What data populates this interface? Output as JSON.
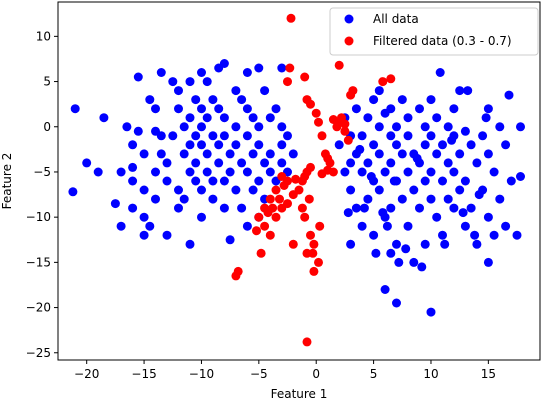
{
  "chart_data": {
    "type": "scatter",
    "xlabel": "Feature 1",
    "ylabel": "Feature 2",
    "xlim": [
      -22.5,
      19.5
    ],
    "ylim": [
      -25.8,
      13.8
    ],
    "xticks": [
      -20,
      -15,
      -10,
      -5,
      0,
      5,
      10,
      15
    ],
    "yticks": [
      -25,
      -20,
      -15,
      -10,
      -5,
      0,
      5,
      10
    ],
    "grid": false,
    "legend_position": "top-right",
    "series": [
      {
        "name": "All data",
        "color": "#0000ff",
        "points": [
          [
            -21,
            2
          ],
          [
            -21.2,
            -7.2
          ],
          [
            -20,
            -4
          ],
          [
            -19,
            -5
          ],
          [
            -18.5,
            1
          ],
          [
            -17.5,
            -8.5
          ],
          [
            -17,
            -5
          ],
          [
            -17,
            -11
          ],
          [
            -16.5,
            0
          ],
          [
            -16,
            -2
          ],
          [
            -16,
            -4.5
          ],
          [
            -16,
            -6
          ],
          [
            -16,
            -9
          ],
          [
            -15.5,
            5.5
          ],
          [
            -15.5,
            -0.5
          ],
          [
            -15,
            -3
          ],
          [
            -15,
            -7
          ],
          [
            -15,
            -10
          ],
          [
            -15,
            -12
          ],
          [
            -14.5,
            -11
          ],
          [
            -14.5,
            3
          ],
          [
            -14,
            2
          ],
          [
            -14,
            -0.5
          ],
          [
            -14,
            -5
          ],
          [
            -14,
            -8
          ],
          [
            -13.5,
            6
          ],
          [
            -13.5,
            -1
          ],
          [
            -13.5,
            -3
          ],
          [
            -13,
            -4
          ],
          [
            -13,
            -6
          ],
          [
            -13,
            -12
          ],
          [
            -12.5,
            5
          ],
          [
            -12.5,
            -1
          ],
          [
            -12,
            2
          ],
          [
            -12,
            4
          ],
          [
            -12,
            -7
          ],
          [
            -12,
            -9
          ],
          [
            -11.5,
            0
          ],
          [
            -11.5,
            -3
          ],
          [
            -11.5,
            -8
          ],
          [
            -11,
            1
          ],
          [
            -11,
            5
          ],
          [
            -11,
            -2
          ],
          [
            -11,
            -5
          ],
          [
            -11,
            -13
          ],
          [
            -10.5,
            3
          ],
          [
            -10.5,
            -1
          ],
          [
            -10.5,
            -4
          ],
          [
            -10.5,
            -6
          ],
          [
            -10,
            6
          ],
          [
            -10,
            2
          ],
          [
            -10,
            0
          ],
          [
            -10,
            -2
          ],
          [
            -10,
            -7
          ],
          [
            -10,
            -10
          ],
          [
            -9.5,
            5
          ],
          [
            -9.5,
            1
          ],
          [
            -9.5,
            -3
          ],
          [
            -9.5,
            -5
          ],
          [
            -9,
            3
          ],
          [
            -9,
            -1
          ],
          [
            -9,
            -6
          ],
          [
            -9,
            -8
          ],
          [
            -8.5,
            6.5
          ],
          [
            -8.5,
            2
          ],
          [
            -8.5,
            -2
          ],
          [
            -8.5,
            -4
          ],
          [
            -8,
            7
          ],
          [
            -8,
            1
          ],
          [
            -8,
            -1
          ],
          [
            -8,
            -6
          ],
          [
            -8,
            -9
          ],
          [
            -7.5,
            -3
          ],
          [
            -7.5,
            -5
          ],
          [
            -7.5,
            -12.5
          ],
          [
            -7,
            4
          ],
          [
            -7,
            0
          ],
          [
            -7,
            -2
          ],
          [
            -7,
            -7
          ],
          [
            -6.5,
            3
          ],
          [
            -6.5,
            -4
          ],
          [
            -6.5,
            -9
          ],
          [
            -6,
            6
          ],
          [
            -6,
            2
          ],
          [
            -6,
            -1
          ],
          [
            -6,
            -5
          ],
          [
            -6,
            -11
          ],
          [
            -5.5,
            1
          ],
          [
            -5.5,
            -3
          ],
          [
            -5.5,
            -7
          ],
          [
            -5,
            6.5
          ],
          [
            -5,
            0
          ],
          [
            -5,
            -2
          ],
          [
            -5,
            -6
          ],
          [
            -5,
            -10
          ],
          [
            -4.5,
            4
          ],
          [
            -4.5,
            -4
          ],
          [
            -4.5,
            -8
          ],
          [
            -4,
            1
          ],
          [
            -4,
            -3
          ],
          [
            -4,
            -5
          ],
          [
            -3.5,
            2
          ],
          [
            -3.5,
            -6
          ],
          [
            -3,
            6.5
          ],
          [
            -3,
            0
          ],
          [
            -3,
            -2
          ],
          [
            -3,
            -4
          ],
          [
            -2.5,
            -1
          ],
          [
            -2.5,
            -5
          ],
          [
            -2,
            -3
          ],
          [
            2,
            -2
          ],
          [
            2.5,
            1
          ],
          [
            2.5,
            -5
          ],
          [
            3,
            -1
          ],
          [
            3,
            -4
          ],
          [
            3,
            -7
          ],
          [
            3,
            -13
          ],
          [
            3.5,
            2
          ],
          [
            3.5,
            -3
          ],
          [
            3.5,
            -9
          ],
          [
            4,
            -1
          ],
          [
            4,
            -5
          ],
          [
            4,
            -11
          ],
          [
            4.5,
            1
          ],
          [
            4.5,
            -4
          ],
          [
            4.5,
            -8
          ],
          [
            5,
            3
          ],
          [
            5,
            -2
          ],
          [
            5,
            -6
          ],
          [
            5,
            -12
          ],
          [
            5.5,
            4
          ],
          [
            5.5,
            0
          ],
          [
            5.5,
            -3
          ],
          [
            5.5,
            -7
          ],
          [
            6,
            1.5
          ],
          [
            6,
            -5
          ],
          [
            6,
            -10
          ],
          [
            6,
            -18
          ],
          [
            6.5,
            2
          ],
          [
            6.5,
            -1
          ],
          [
            6.5,
            -4
          ],
          [
            6.5,
            -9
          ],
          [
            6.5,
            -14
          ],
          [
            7,
            0
          ],
          [
            7,
            -2
          ],
          [
            7,
            -6
          ],
          [
            7,
            -13
          ],
          [
            7,
            -19.5
          ],
          [
            7.5,
            3
          ],
          [
            7.5,
            -3
          ],
          [
            7.5,
            -8
          ],
          [
            8,
            1
          ],
          [
            8,
            -1
          ],
          [
            8,
            -5
          ],
          [
            8,
            -11
          ],
          [
            8.5,
            -3
          ],
          [
            8.5,
            -7
          ],
          [
            8.5,
            -15
          ],
          [
            9,
            2
          ],
          [
            9,
            -4
          ],
          [
            9,
            -9
          ],
          [
            9.5,
            0
          ],
          [
            9.5,
            -2
          ],
          [
            9.5,
            -6
          ],
          [
            9.5,
            -13
          ],
          [
            10,
            3
          ],
          [
            10,
            -1
          ],
          [
            10,
            -5
          ],
          [
            10,
            -8
          ],
          [
            10,
            -20.5
          ],
          [
            10.5,
            1
          ],
          [
            10.5,
            -3
          ],
          [
            10.5,
            -10
          ],
          [
            11,
            -2
          ],
          [
            11,
            -6
          ],
          [
            11,
            -12
          ],
          [
            11.5,
            0
          ],
          [
            11.5,
            -4
          ],
          [
            11.5,
            -8
          ],
          [
            12,
            2
          ],
          [
            12,
            -1
          ],
          [
            12,
            -5
          ],
          [
            12,
            -9
          ],
          [
            12.5,
            4
          ],
          [
            12.5,
            -3
          ],
          [
            12.5,
            -7
          ],
          [
            13,
            -0.5
          ],
          [
            13,
            -6
          ],
          [
            13,
            -11
          ],
          [
            13.5,
            -2
          ],
          [
            13.5,
            -9
          ],
          [
            14,
            -4
          ],
          [
            14,
            -13
          ],
          [
            14.5,
            -1
          ],
          [
            14.5,
            -7
          ],
          [
            15,
            2
          ],
          [
            15,
            -3
          ],
          [
            15,
            -10
          ],
          [
            15,
            -15
          ],
          [
            15.5,
            -5
          ],
          [
            15.5,
            -12
          ],
          [
            16,
            0
          ],
          [
            16,
            -8
          ],
          [
            16.5,
            -2
          ],
          [
            16.5,
            -11
          ],
          [
            17,
            -6
          ],
          [
            17.5,
            -12
          ],
          [
            17.8,
            0
          ],
          [
            17.8,
            -5.5
          ],
          [
            16.8,
            3.5
          ],
          [
            14.8,
            1
          ],
          [
            13.2,
            4
          ],
          [
            11.8,
            -1.5
          ],
          [
            10.8,
            6
          ],
          [
            8.8,
            -3.5
          ],
          [
            7.8,
            -13.5
          ],
          [
            6.8,
            -6
          ],
          [
            5.8,
            -9.5
          ],
          [
            4.8,
            -5.5
          ],
          [
            3.8,
            -2.5
          ],
          [
            2.8,
            -9.5
          ],
          [
            4.2,
            -9
          ],
          [
            5.2,
            -14
          ],
          [
            6.2,
            -11
          ],
          [
            7.2,
            -15
          ],
          [
            9.2,
            -15.5
          ],
          [
            11.2,
            -13
          ],
          [
            12.8,
            -9.5
          ],
          [
            13.8,
            -12
          ],
          [
            14.2,
            -7.5
          ]
        ]
      },
      {
        "name": "Filtered data (0.3 - 0.7)",
        "color": "#ff0000",
        "points": [
          [
            -2.2,
            12
          ],
          [
            -2.3,
            6.5
          ],
          [
            -2.5,
            5
          ],
          [
            -1,
            5.5
          ],
          [
            -0.8,
            3
          ],
          [
            -0.5,
            2.5
          ],
          [
            0,
            1.5
          ],
          [
            0.2,
            0.5
          ],
          [
            0.5,
            -1
          ],
          [
            0.8,
            -3
          ],
          [
            1,
            -3.5
          ],
          [
            1.2,
            -4
          ],
          [
            1.5,
            -5
          ],
          [
            1.8,
            0
          ],
          [
            2,
            0.5
          ],
          [
            2.2,
            1
          ],
          [
            2.5,
            -0.5
          ],
          [
            2.8,
            -1.5
          ],
          [
            3,
            3.5
          ],
          [
            3.2,
            4
          ],
          [
            5.8,
            5
          ],
          [
            6.5,
            5.3
          ],
          [
            2,
            6.8
          ],
          [
            1.5,
            0.8
          ],
          [
            2.5,
            0.3
          ],
          [
            -0.5,
            -4.5
          ],
          [
            -0.8,
            -5
          ],
          [
            -1,
            -5.5
          ],
          [
            -1.2,
            -6
          ],
          [
            -1.5,
            -7
          ],
          [
            -2,
            -7.5
          ],
          [
            -2.5,
            -6
          ],
          [
            -3,
            -5.5
          ],
          [
            -3.5,
            -7
          ],
          [
            -4,
            -8
          ],
          [
            -4.5,
            -9
          ],
          [
            -5,
            -10
          ],
          [
            -4.5,
            -11
          ],
          [
            -4,
            -12
          ],
          [
            -3.5,
            -10
          ],
          [
            -3,
            -9
          ],
          [
            -2.5,
            -8.5
          ],
          [
            -1.2,
            -9
          ],
          [
            -1,
            -10
          ],
          [
            -0.5,
            -12
          ],
          [
            -0.2,
            -13
          ],
          [
            0.2,
            -15
          ],
          [
            -0.2,
            -16
          ],
          [
            -0.8,
            -14
          ],
          [
            -2,
            -13
          ],
          [
            -4.8,
            -14
          ],
          [
            -6.8,
            -16
          ],
          [
            -7,
            -16.5
          ],
          [
            -0.8,
            -23.8
          ],
          [
            0.5,
            -5.2
          ],
          [
            1,
            -4.8
          ],
          [
            -1.8,
            -5.8
          ],
          [
            -2.8,
            -6.5
          ],
          [
            -3.2,
            -8
          ],
          [
            -4.2,
            -9.5
          ],
          [
            -5.2,
            -11.5
          ],
          [
            -3.8,
            -9
          ],
          [
            -0.6,
            -8
          ],
          [
            0.3,
            -11
          ],
          [
            -0.3,
            -14
          ]
        ]
      }
    ]
  }
}
